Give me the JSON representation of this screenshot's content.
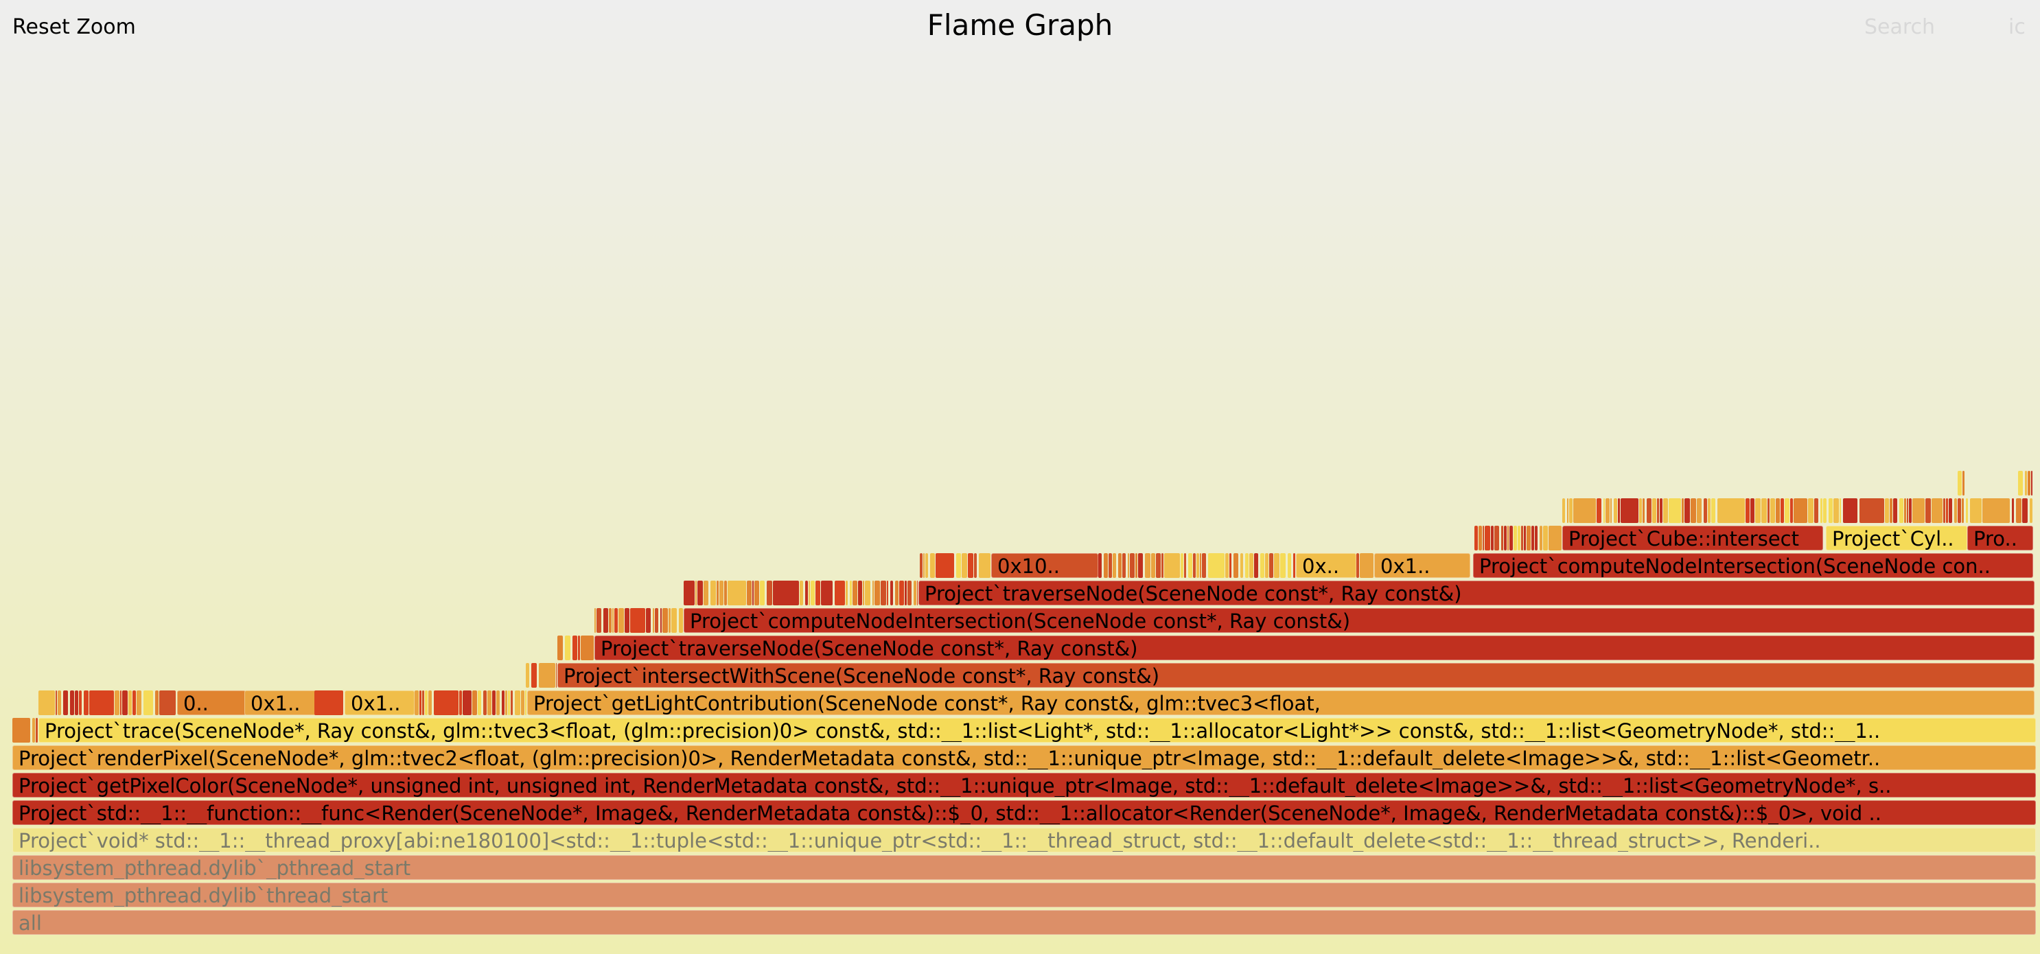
{
  "toolbar": {
    "reset_zoom_label": "Reset Zoom",
    "title": "Flame Graph",
    "search_label": "Search",
    "ic_label": "ic"
  },
  "colors": {
    "background_top": "#eeeeee",
    "background_bottom": "#eeeeb0",
    "dark_red": "#c0301f",
    "red_orange": "#cf5127",
    "orange": "#e0832f",
    "light_orange": "#e9a43f",
    "yellow_orange": "#f0be4a",
    "yellow": "#f5db58",
    "pale_yellow": "#f0e48a",
    "salmon": "#dc8f68"
  },
  "frames": [
    {
      "level": 0,
      "label": "all",
      "color": "#dc8f68",
      "dim": true
    },
    {
      "level": 1,
      "label": "libsystem_pthread.dylib`thread_start",
      "color": "#dc8f68",
      "dim": true
    },
    {
      "level": 2,
      "label": "libsystem_pthread.dylib`_pthread_start",
      "color": "#dc8f68",
      "dim": true
    },
    {
      "level": 3,
      "label": "Project`void* std::__1::__thread_proxy[abi:ne180100]<std::__1::tuple<std::__1::unique_ptr<std::__1::__thread_struct, std::__1::default_delete<std::__1::__thread_struct>>, Renderi..",
      "color": "#f0e48a",
      "dim": true
    },
    {
      "level": 4,
      "label": "Project`std::__1::__function::__func<Render(SceneNode*, Image&, RenderMetadata const&)::$_0, std::__1::allocator<Render(SceneNode*, Image&, RenderMetadata const&)::$_0>, void ..",
      "color": "#c0301f"
    },
    {
      "level": 5,
      "label": "Project`getPixelColor(SceneNode*, unsigned int, unsigned int, RenderMetadata const&, std::__1::unique_ptr<Image, std::__1::default_delete<Image>>&, std::__1::list<GeometryNode*, s..",
      "color": "#c0301f"
    },
    {
      "level": 6,
      "label": "Project`renderPixel(SceneNode*, glm::tvec2<float, (glm::precision)0>, RenderMetadata const&, std::__1::unique_ptr<Image, std::__1::default_delete<Image>>&, std::__1::list<Geometr..",
      "color": "#e9a43f"
    },
    {
      "level": 7,
      "label": "Project`trace(SceneNode*, Ray const&, glm::tvec3<float, (glm::precision)0> const&, std::__1::list<Light*, std::__1::allocator<Light*>> const&, std::__1::list<GeometryNode*, std::__1..",
      "color": "#f5db58"
    },
    {
      "level": 8,
      "label": "Project`getLightContribution(SceneNode const*, Ray const&, glm::tvec3<float,",
      "color": "#e9a43f"
    },
    {
      "level": 8,
      "label": "0..",
      "color": "#e0832f"
    },
    {
      "level": 8,
      "label": "0x1..",
      "color": "#e9a43f"
    },
    {
      "level": 8,
      "label": "0x1..",
      "color": "#f0be4a"
    },
    {
      "level": 9,
      "label": "Project`intersectWithScene(SceneNode const*, Ray const&)",
      "color": "#cf5127"
    },
    {
      "level": 10,
      "label": "Project`traverseNode(SceneNode const*, Ray const&)",
      "color": "#c0301f"
    },
    {
      "level": 11,
      "label": "Project`computeNodeIntersection(SceneNode const*, Ray const&)",
      "color": "#c0301f"
    },
    {
      "level": 12,
      "label": "Project`traverseNode(SceneNode const*, Ray const&)",
      "color": "#c0301f"
    },
    {
      "level": 13,
      "label": "Project`computeNodeIntersection(SceneNode con..",
      "color": "#c0301f"
    },
    {
      "level": 13,
      "label": "0x10..",
      "color": "#cf5127"
    },
    {
      "level": 13,
      "label": "0x..",
      "color": "#f0be4a"
    },
    {
      "level": 13,
      "label": "0x1..",
      "color": "#e9a43f"
    },
    {
      "level": 14,
      "label": "Project`Cube::intersect",
      "color": "#c0301f"
    },
    {
      "level": 14,
      "label": "Project`Cyl..",
      "color": "#f5db58"
    },
    {
      "level": 14,
      "label": "Pro..",
      "color": "#c0301f"
    }
  ]
}
